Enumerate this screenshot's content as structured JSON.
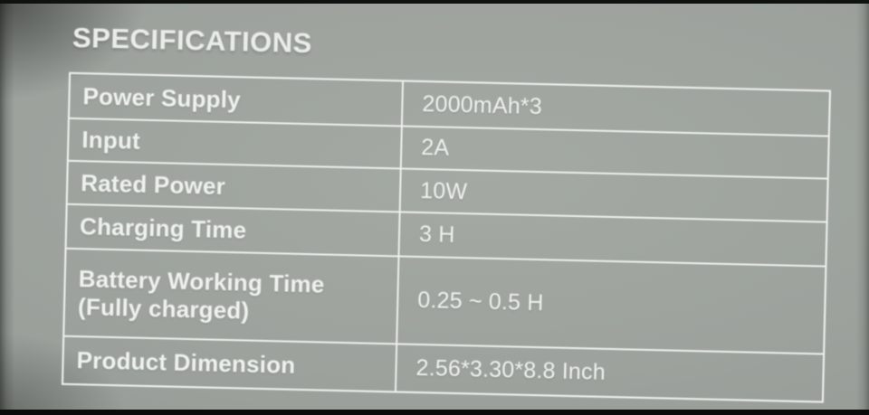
{
  "header": {
    "title": "SPECIFICATIONS"
  },
  "spec_table": {
    "rows": [
      {
        "label": "Power Supply",
        "value": "2000mAh*3"
      },
      {
        "label": "Input",
        "value": "2A"
      },
      {
        "label": "Rated Power",
        "value": "10W"
      },
      {
        "label": "Charging Time",
        "value": "3 H"
      },
      {
        "label": "Battery Working Time\n(Fully charged)",
        "value": "0.25 ~ 0.5 H"
      },
      {
        "label": "Product Dimension",
        "value": "2.56*3.30*8.8 Inch"
      }
    ]
  },
  "colors": {
    "screen_background": "#9da29d",
    "table_border": "#edf0ec",
    "text": "#eef1ed",
    "letterbox": "#0d0d0d"
  }
}
